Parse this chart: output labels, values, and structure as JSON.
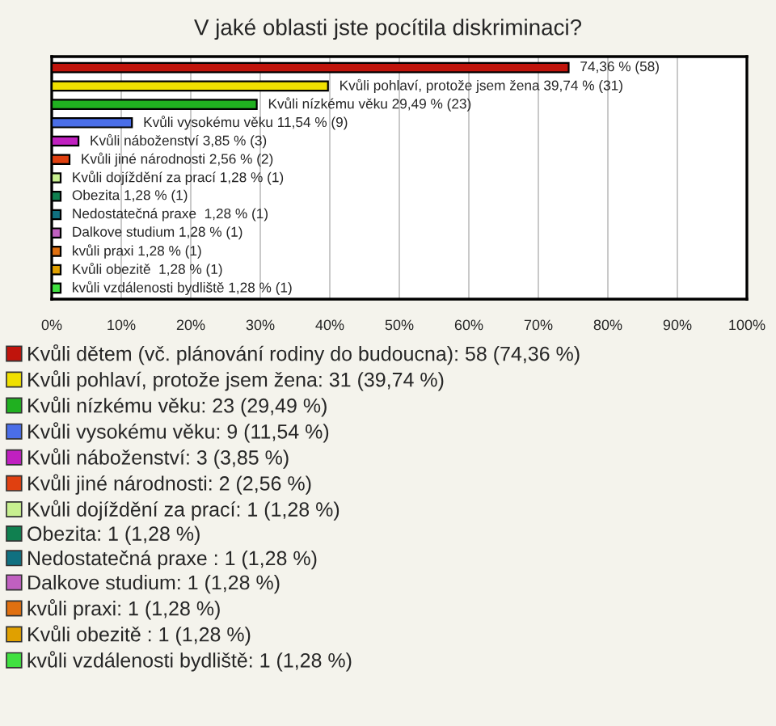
{
  "chart_data": {
    "type": "bar",
    "orientation": "horizontal",
    "title": "V jaké oblasti jste pocítila diskriminaci?",
    "categories": [
      null,
      null,
      null,
      null,
      null,
      null,
      null,
      null,
      null,
      null,
      null,
      null,
      null
    ],
    "series": [
      {
        "name": "Kvůli dětem (vč. plánování rodiny do budoucna): 58 (74,36 %)",
        "color": "#c0140c",
        "values": [
          74.36,
          null,
          null,
          null,
          null,
          null,
          null,
          null,
          null,
          null,
          null,
          null,
          null
        ]
      },
      {
        "name": "Kvůli pohlaví, protože jsem žena: 31 (39,74 %)",
        "color": "#f0e000",
        "values": [
          null,
          39.74,
          null,
          null,
          null,
          null,
          null,
          null,
          null,
          null,
          null,
          null,
          null
        ]
      },
      {
        "name": "Kvůli nízkému věku: 23 (29,49 %)",
        "color": "#20b020",
        "values": [
          null,
          null,
          29.49,
          null,
          null,
          null,
          null,
          null,
          null,
          null,
          null,
          null,
          null
        ]
      },
      {
        "name": "Kvůli vysokému věku: 9 (11,54 %)",
        "color": "#4a6ee8",
        "values": [
          null,
          null,
          null,
          11.54,
          null,
          null,
          null,
          null,
          null,
          null,
          null,
          null,
          null
        ]
      },
      {
        "name": "Kvůli náboženství: 3 (3,85 %)",
        "color": "#c020c0",
        "values": [
          null,
          null,
          null,
          null,
          3.85,
          null,
          null,
          null,
          null,
          null,
          null,
          null,
          null
        ]
      },
      {
        "name": "Kvůli jiné národnosti: 2 (2,56 %)",
        "color": "#e04010",
        "values": [
          null,
          null,
          null,
          null,
          null,
          2.56,
          null,
          null,
          null,
          null,
          null,
          null,
          null
        ]
      },
      {
        "name": "Kvůli dojíždění za prací: 1 (1,28 %)",
        "color": "#c8f090",
        "values": [
          null,
          null,
          null,
          null,
          null,
          null,
          1.28,
          null,
          null,
          null,
          null,
          null,
          null
        ]
      },
      {
        "name": "Obezita: 1 (1,28 %)",
        "color": "#108050",
        "values": [
          null,
          null,
          null,
          null,
          null,
          null,
          null,
          1.28,
          null,
          null,
          null,
          null,
          null
        ]
      },
      {
        "name": "Nedostatečná praxe : 1 (1,28 %)",
        "color": "#107080",
        "values": [
          null,
          null,
          null,
          null,
          null,
          null,
          null,
          null,
          1.28,
          null,
          null,
          null,
          null
        ]
      },
      {
        "name": "Dalkove studium: 1 (1,28 %)",
        "color": "#c060c0",
        "values": [
          null,
          null,
          null,
          null,
          null,
          null,
          null,
          null,
          null,
          1.28,
          null,
          null,
          null
        ]
      },
      {
        "name": "kvůli praxi: 1 (1,28 %)",
        "color": "#e07010",
        "values": [
          null,
          null,
          null,
          null,
          null,
          null,
          null,
          null,
          null,
          null,
          1.28,
          null,
          null
        ]
      },
      {
        "name": "Kvůli obezitě : 1 (1,28 %)",
        "color": "#e0a000",
        "values": [
          null,
          null,
          null,
          null,
          null,
          null,
          null,
          null,
          null,
          null,
          null,
          1.28,
          null
        ]
      },
      {
        "name": "kvůli vzdálenosti bydliště: 1 (1,28 %)",
        "color": "#40e040",
        "values": [
          null,
          null,
          null,
          null,
          null,
          null,
          null,
          null,
          null,
          null,
          null,
          null,
          1.28
        ]
      }
    ],
    "value_labels": [
      "74,36 % (58)",
      "Kvůli pohlaví, protože jsem žena 39,74 % (31)",
      "Kvůli nízkému věku 29,49 % (23)",
      "Kvůli vysokému věku 11,54 % (9)",
      "Kvůli náboženství 3,85 % (3)",
      "Kvůli jiné národnosti 2,56 % (2)",
      "Kvůli dojíždění za prací 1,28 % (1)",
      "Obezita 1,28 % (1)",
      "Nedostatečná praxe  1,28 % (1)",
      "Dalkove studium 1,28 % (1)",
      "kvůli praxi 1,28 % (1)",
      "Kvůli obezitě  1,28 % (1)",
      "kvůli vzdálenosti bydliště 1,28 % (1)"
    ],
    "xlim": [
      0,
      100
    ],
    "xticks": [
      {
        "value": 0,
        "label": "0%"
      },
      {
        "value": 10,
        "label": "10%"
      },
      {
        "value": 20,
        "label": "20%"
      },
      {
        "value": 30,
        "label": "30%"
      },
      {
        "value": 40,
        "label": "40%"
      },
      {
        "value": 50,
        "label": "50%"
      },
      {
        "value": 60,
        "label": "60%"
      },
      {
        "value": 70,
        "label": "70%"
      },
      {
        "value": 80,
        "label": "80%"
      },
      {
        "value": 90,
        "label": "90%"
      },
      {
        "value": 100,
        "label": "100%"
      }
    ],
    "grid": "x",
    "legend": "bottom"
  }
}
